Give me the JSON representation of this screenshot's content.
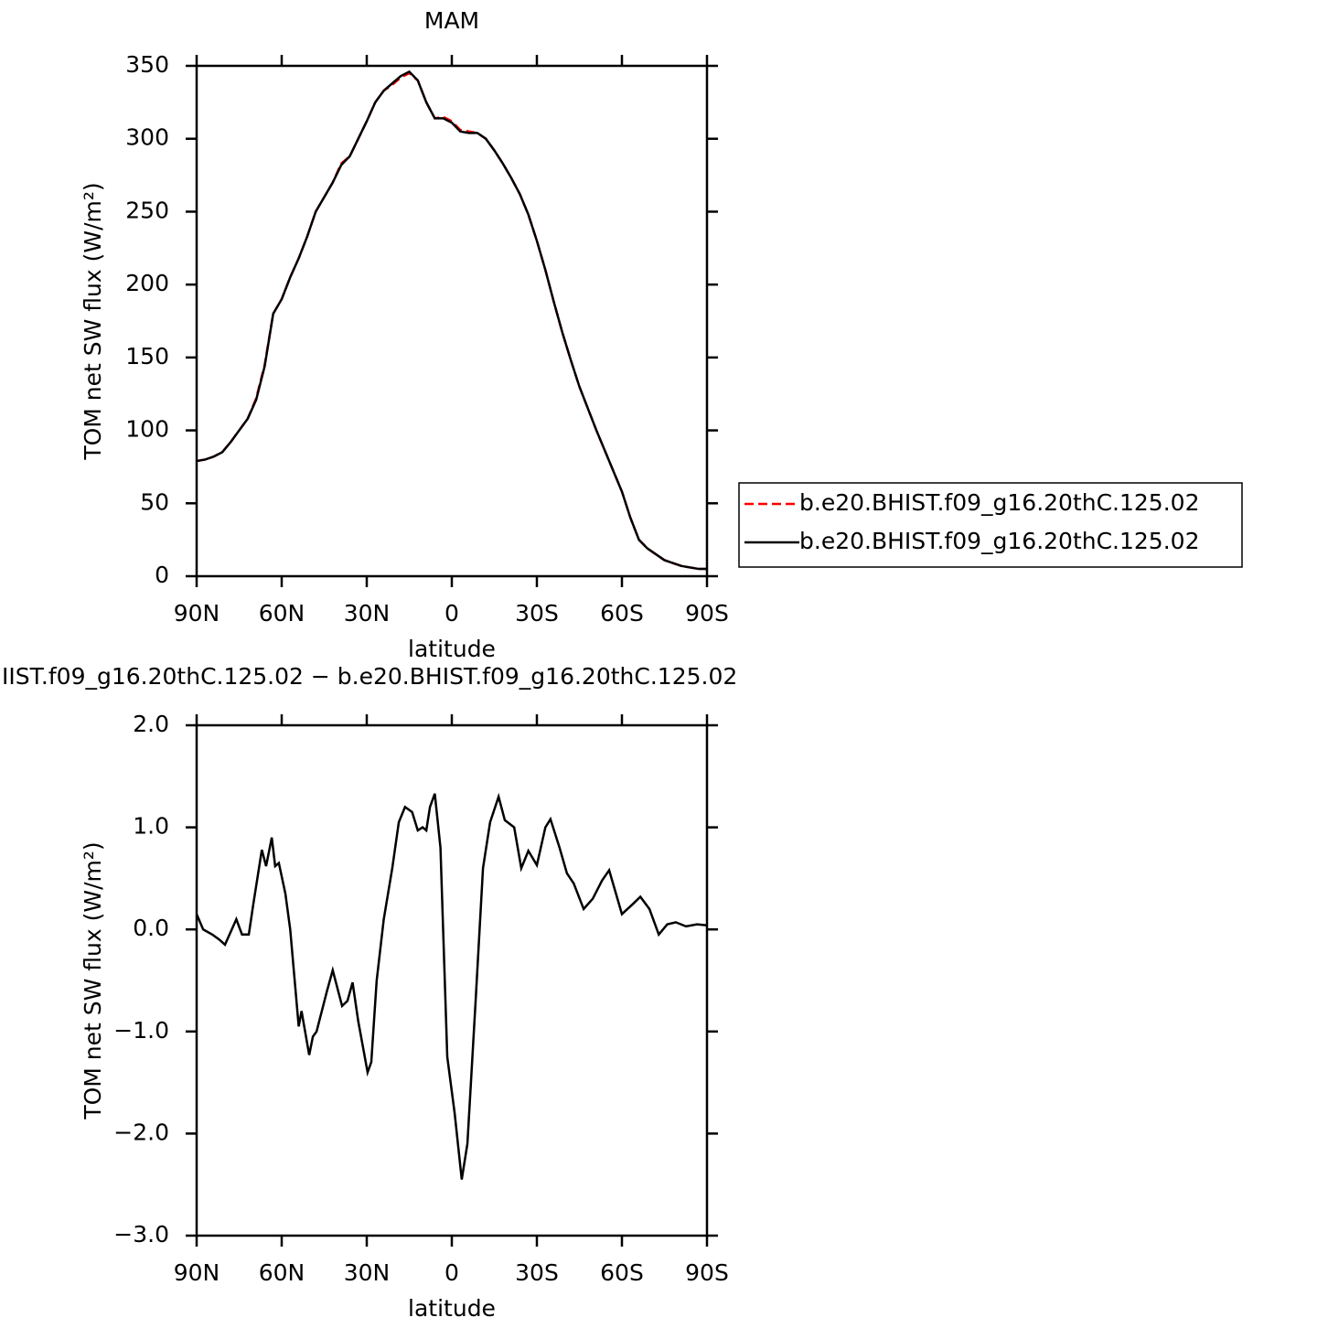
{
  "chart_data": [
    {
      "type": "line",
      "title": "MAM",
      "xlabel": "latitude",
      "ylabel": "TOM net SW flux (W/m²)",
      "x": [
        90,
        87,
        84,
        81,
        78,
        75,
        72,
        69,
        66,
        63,
        60,
        57,
        54,
        51,
        48,
        45,
        42,
        39,
        36,
        33,
        30,
        27,
        24,
        21,
        18,
        15,
        12,
        9,
        6,
        3,
        0,
        -3,
        -6,
        -9,
        -12,
        -15,
        -18,
        -21,
        -24,
        -27,
        -30,
        -33,
        -36,
        -39,
        -42,
        -45,
        -48,
        -51,
        -54,
        -57,
        -60,
        -63,
        -66,
        -69,
        -72,
        -75,
        -78,
        -81,
        -84,
        -87,
        -90
      ],
      "series": [
        {
          "name": "b.e20.BHIST.f09_g16.20thC.125.02",
          "color": "#ff0000",
          "line_style": "dashed",
          "values": [
            79,
            80,
            82,
            85,
            92,
            100,
            108,
            122,
            145,
            180,
            190,
            205,
            218,
            233,
            250,
            260,
            270,
            283,
            288,
            300,
            312,
            325,
            333,
            337,
            342,
            345,
            340,
            325,
            314,
            315,
            312,
            306,
            305,
            304,
            300,
            292,
            283,
            273,
            262,
            248,
            230,
            210,
            188,
            167,
            148,
            130,
            115,
            100,
            86,
            72,
            58,
            40,
            25,
            19,
            15,
            11,
            9,
            7,
            6,
            5,
            5
          ]
        },
        {
          "name": "b.e20.BHIST.f09_g16.20thC.125.02",
          "color": "#000000",
          "line_style": "solid",
          "values": [
            79,
            80,
            82,
            85,
            92,
            100,
            108,
            121,
            144,
            180,
            190,
            205,
            218,
            233,
            250,
            260,
            270,
            282,
            288,
            300,
            312,
            325,
            333,
            338,
            343,
            346,
            340,
            325,
            314,
            314,
            311,
            305,
            304,
            304,
            300,
            292,
            283,
            273,
            262,
            248,
            230,
            210,
            188,
            167,
            148,
            130,
            115,
            100,
            86,
            72,
            58,
            40,
            25,
            19,
            15,
            11,
            9,
            7,
            6,
            5,
            5
          ]
        }
      ],
      "xlim": [
        90,
        -90
      ],
      "xticks": [
        {
          "value": 90,
          "label": "90N"
        },
        {
          "value": 60,
          "label": "60N"
        },
        {
          "value": 30,
          "label": "30N"
        },
        0,
        {
          "value": -30,
          "label": "30S"
        },
        {
          "value": -60,
          "label": "60S"
        },
        {
          "value": -90,
          "label": "90S"
        }
      ],
      "ylim": [
        0,
        350
      ],
      "yticks": [
        0,
        50,
        100,
        150,
        200,
        250,
        300,
        350
      ],
      "legend": "right"
    },
    {
      "type": "line",
      "title": "IIST.f09_g16.20thC.125.02 − b.e20.BHIST.f09_g16.20thC.125.02",
      "xlabel": "latitude",
      "ylabel": "TOM net SW flux (W/m²)",
      "x": [
        90,
        87.7,
        84.5,
        82,
        80,
        76,
        74,
        71.6,
        70,
        67,
        65.5,
        63.5,
        62.3,
        61,
        58.7,
        57,
        54,
        53,
        50.3,
        49,
        47.7,
        44,
        42,
        38.7,
        36.8,
        35,
        33,
        29.7,
        28.4,
        26.5,
        24,
        21,
        18.7,
        16.5,
        14,
        12,
        10.3,
        9,
        7.7,
        6,
        4,
        1.6,
        -1,
        -3.5,
        -5.5,
        -8.4,
        -11,
        -13.5,
        -16.5,
        -18.7,
        -22,
        -24.5,
        -27,
        -30,
        -33,
        -34.8,
        -38,
        -40.6,
        -43,
        -46.5,
        -49.7,
        -53,
        -55.5,
        -60,
        -63.9,
        -66.5,
        -69.7,
        -73,
        -76,
        -79,
        -82.6,
        -86.5,
        -90
      ],
      "series": [
        {
          "color": "#000000",
          "line_style": "solid",
          "values": [
            0.15,
            0.0,
            -0.05,
            -0.1,
            -0.15,
            0.1,
            -0.05,
            -0.05,
            0.25,
            0.78,
            0.62,
            0.9,
            0.62,
            0.65,
            0.35,
            0.0,
            -0.95,
            -0.8,
            -1.23,
            -1.05,
            -1.0,
            -0.6,
            -0.4,
            -0.75,
            -0.7,
            -0.52,
            -0.9,
            -1.4,
            -1.3,
            -0.5,
            0.1,
            0.6,
            1.05,
            1.2,
            1.15,
            0.97,
            1.0,
            0.97,
            1.2,
            1.33,
            0.8,
            -1.25,
            -1.8,
            -2.45,
            -2.1,
            -0.7,
            0.6,
            1.05,
            1.3,
            1.07,
            1.0,
            0.6,
            0.77,
            0.63,
            1.0,
            1.08,
            0.8,
            0.55,
            0.45,
            0.2,
            0.3,
            0.48,
            0.58,
            0.15,
            0.25,
            0.32,
            0.2,
            -0.05,
            0.05,
            0.07,
            0.03,
            0.05,
            0.04
          ]
        }
      ],
      "xlim": [
        90,
        -90
      ],
      "xticks": [
        {
          "value": 90,
          "label": "90N"
        },
        {
          "value": 60,
          "label": "60N"
        },
        {
          "value": 30,
          "label": "30N"
        },
        0,
        {
          "value": -30,
          "label": "30S"
        },
        {
          "value": -60,
          "label": "60S"
        },
        {
          "value": -90,
          "label": "90S"
        }
      ],
      "ylim": [
        -3,
        2
      ],
      "yticks": [
        {
          "value": -3,
          "label": "−3.0"
        },
        {
          "value": -2,
          "label": "−2.0"
        },
        {
          "value": -1,
          "label": "−1.0"
        },
        {
          "value": 0,
          "label": "0.0"
        },
        {
          "value": 1,
          "label": "1.0"
        },
        {
          "value": 2,
          "label": "2.0"
        }
      ]
    }
  ]
}
